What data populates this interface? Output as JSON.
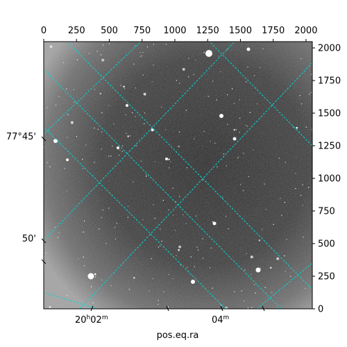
{
  "figure": {
    "xlabel": "pos.eq.ra",
    "image_kind": "grayscale astronomical star-field image",
    "grid_color": "#00d8d8",
    "background_color": "#ffffff",
    "pixel_axes": {
      "x_ticks": [
        "0",
        "250",
        "500",
        "750",
        "1000",
        "1250",
        "1500",
        "1750",
        "2000"
      ],
      "y_ticks": [
        "0",
        "250",
        "500",
        "750",
        "1000",
        "1250",
        "1500",
        "1750",
        "2000"
      ],
      "x_range": [
        0,
        2048
      ],
      "y_range": [
        0,
        2048
      ]
    },
    "world_axes": {
      "ra_ticks": [
        {
          "h": "20",
          "m": "02",
          "sup_h": "h",
          "sup_m": "m"
        },
        {
          "h": "",
          "m": "04",
          "sup_h": "",
          "sup_m": "m"
        }
      ],
      "dec_ticks": [
        "77°45'",
        "50'"
      ]
    }
  }
}
